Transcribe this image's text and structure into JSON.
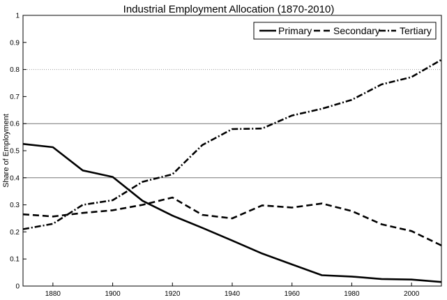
{
  "chart_data": {
    "type": "line",
    "title": "Industrial Employment Allocation (1870-2010)",
    "xlabel": "",
    "ylabel": "Share of Employment",
    "xlim": [
      1870,
      2010
    ],
    "ylim": [
      0,
      1
    ],
    "x_ticks": [
      1880,
      1900,
      1920,
      1940,
      1960,
      1980,
      2000
    ],
    "y_ticks": [
      0,
      0.1,
      0.2,
      0.3,
      0.4,
      0.5,
      0.6,
      0.7,
      0.8,
      0.9,
      1
    ],
    "x_tick_labels": [
      "1880",
      "1900",
      "1920",
      "1940",
      "1960",
      "1980",
      "2000"
    ],
    "y_tick_labels": [
      "0",
      "0.1",
      "0.2",
      "0.3",
      "0.4",
      "0.5",
      "0.6",
      "0.7",
      "0.8",
      "0.9",
      "1"
    ],
    "reference_lines": [
      {
        "y": 0.4,
        "style": "solid-gray"
      },
      {
        "y": 0.6,
        "style": "solid-gray"
      },
      {
        "y": 0.8,
        "style": "dotted-gray"
      }
    ],
    "legend_position": "top-right",
    "legend_orientation": "horizontal",
    "x": [
      1870,
      1880,
      1890,
      1900,
      1910,
      1920,
      1930,
      1940,
      1950,
      1960,
      1970,
      1980,
      1990,
      2000,
      2010
    ],
    "series": [
      {
        "name": "Primary",
        "style": "solid",
        "values": [
          0.525,
          0.513,
          0.427,
          0.403,
          0.315,
          0.26,
          0.215,
          0.168,
          0.12,
          0.08,
          0.04,
          0.035,
          0.026,
          0.024,
          0.015
        ]
      },
      {
        "name": "Secondary",
        "style": "dashed",
        "values": [
          0.265,
          0.257,
          0.27,
          0.28,
          0.3,
          0.327,
          0.263,
          0.25,
          0.298,
          0.29,
          0.305,
          0.277,
          0.228,
          0.203,
          0.15
        ]
      },
      {
        "name": "Tertiary",
        "style": "dashdot",
        "values": [
          0.21,
          0.23,
          0.3,
          0.317,
          0.385,
          0.413,
          0.521,
          0.58,
          0.582,
          0.63,
          0.655,
          0.688,
          0.745,
          0.772,
          0.836
        ]
      }
    ]
  }
}
